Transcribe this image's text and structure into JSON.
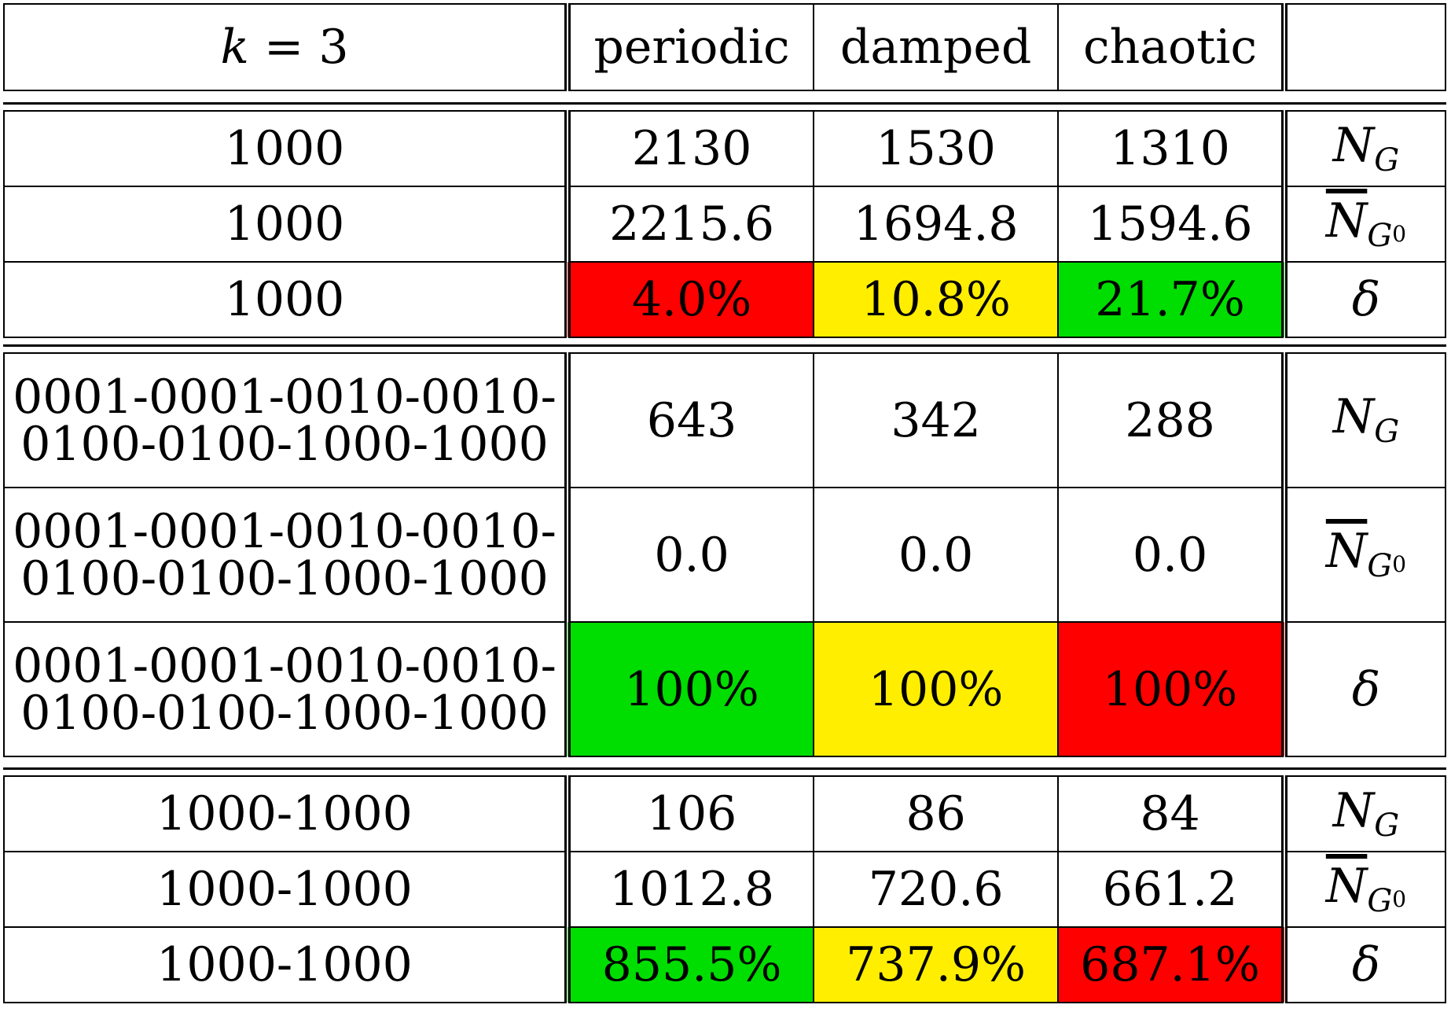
{
  "header": {
    "k_label": "k",
    "k_eq": "= 3",
    "cols": [
      "periodic",
      "damped",
      "chaotic",
      ""
    ]
  },
  "metrics": {
    "N_G": {
      "sym": "N",
      "sub": "G"
    },
    "N_G0": {
      "sym": "N",
      "sub": "G",
      "sub2": "0"
    },
    "delta": "δ"
  },
  "colors": {
    "red": "#ff0000",
    "yellow": "#ffee00",
    "green": "#00dd00"
  },
  "blocks": [
    {
      "rows": [
        {
          "label": "1000",
          "values": [
            "2130",
            "1530",
            "1310"
          ],
          "metric": "N_G"
        },
        {
          "label": "1000",
          "values": [
            "2215.6",
            "1694.8",
            "1594.6"
          ],
          "metric": "N_G0"
        },
        {
          "label": "1000",
          "values": [
            "4.0%",
            "10.8%",
            "21.7%"
          ],
          "metric": "delta",
          "cell_colors": [
            "red",
            "yellow",
            "green"
          ]
        }
      ]
    },
    {
      "rows": [
        {
          "label_line1": "0001-0001-0010-0010-",
          "label_line2": "0100-0100-1000-1000",
          "values": [
            "643",
            "342",
            "288"
          ],
          "metric": "N_G"
        },
        {
          "label_line1": "0001-0001-0010-0010-",
          "label_line2": "0100-0100-1000-1000",
          "values": [
            "0.0",
            "0.0",
            "0.0"
          ],
          "metric": "N_G0"
        },
        {
          "label_line1": "0001-0001-0010-0010-",
          "label_line2": "0100-0100-1000-1000",
          "values": [
            "100%",
            "100%",
            "100%"
          ],
          "metric": "delta",
          "cell_colors": [
            "green",
            "yellow",
            "red"
          ]
        }
      ]
    },
    {
      "rows": [
        {
          "label": "1000-1000",
          "values": [
            "106",
            "86",
            "84"
          ],
          "metric": "N_G"
        },
        {
          "label": "1000-1000",
          "values": [
            "1012.8",
            "720.6",
            "661.2"
          ],
          "metric": "N_G0"
        },
        {
          "label": "1000-1000",
          "values": [
            "855.5%",
            "737.9%",
            "687.1%"
          ],
          "metric": "delta",
          "cell_colors": [
            "green",
            "yellow",
            "red"
          ]
        }
      ]
    }
  ]
}
